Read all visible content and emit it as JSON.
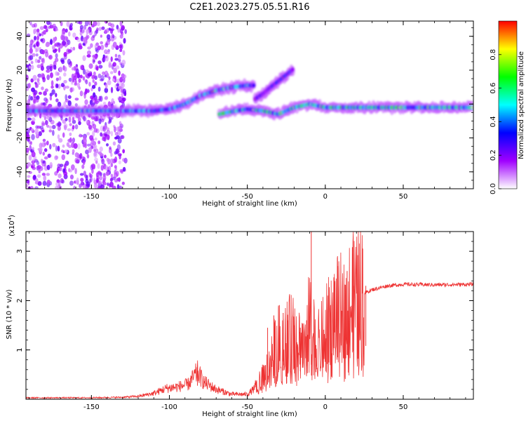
{
  "chart_data": [
    {
      "type": "heatmap",
      "title": "C2E1.2023.275.05.51.R16",
      "xlabel": "Height of straight line (km)",
      "ylabel": "Frequency (Hz)",
      "xlim": [
        -192,
        95
      ],
      "ylim": [
        -50,
        49
      ],
      "xticks": [
        -150,
        -100,
        -50,
        0,
        50
      ],
      "xtick_labels": [
        "-150",
        "-100",
        "-50",
        "0",
        "50"
      ],
      "yticks": [
        -40,
        -20,
        0,
        20,
        40
      ],
      "ytick_labels": [
        "-40",
        "-20",
        "0",
        "20",
        "40"
      ],
      "colorbar": {
        "label": "Normalized spectral amplitude",
        "range": [
          0,
          1
        ],
        "ticks": [
          0,
          0.2,
          0.4,
          0.6,
          0.8
        ],
        "tick_labels": [
          "0.0",
          "0.2",
          "0.4",
          "0.6",
          "0.8"
        ],
        "colors": [
          "#ffffff",
          "#a000ff",
          "#0000ff",
          "#00ffff",
          "#00ff00",
          "#ffff00",
          "#ff0000"
        ]
      },
      "noise_region": {
        "x_range": [
          -192,
          -128
        ],
        "y_range": [
          -50,
          49
        ],
        "amplitude": 0.15
      },
      "bands": [
        {
          "name": "main",
          "points": [
            [
              -192,
              -4
            ],
            [
              -160,
              -4
            ],
            [
              -130,
              -4
            ],
            [
              -110,
              -4
            ],
            [
              -100,
              -3
            ],
            [
              -90,
              0
            ],
            [
              -80,
              5
            ],
            [
              -70,
              8
            ],
            [
              -60,
              10
            ],
            [
              -50,
              11
            ],
            [
              -45,
              11
            ]
          ],
          "amplitude": 0.35
        },
        {
          "name": "upper",
          "points": [
            [
              -45,
              3
            ],
            [
              -40,
              6
            ],
            [
              -35,
              10
            ],
            [
              -28,
              15
            ],
            [
              -20,
              21
            ]
          ],
          "amplitude": 0.25
        },
        {
          "name": "lower",
          "points": [
            [
              -68,
              -6
            ],
            [
              -58,
              -4
            ],
            [
              -50,
              -3
            ],
            [
              -40,
              -4
            ],
            [
              -30,
              -6
            ],
            [
              -20,
              -2
            ],
            [
              -10,
              0
            ],
            [
              0,
              -2
            ],
            [
              10,
              -2
            ],
            [
              50,
              -2
            ],
            [
              95,
              -2
            ]
          ],
          "amplitude": 0.45
        }
      ],
      "grid": false
    },
    {
      "type": "line",
      "xlabel": "Height of straight line (km)",
      "ylabel": "SNR (10 * v/v)",
      "multiplier_label": "(x10",
      "multiplier_exp": "4",
      "multiplier_close": ")",
      "xlim": [
        -192,
        95
      ],
      "ylim": [
        0,
        3.4
      ],
      "xticks": [
        -150,
        -100,
        -50,
        0,
        50
      ],
      "xtick_labels": [
        "-150",
        "-100",
        "-50",
        "0",
        "50"
      ],
      "yticks": [
        1,
        2,
        3
      ],
      "ytick_labels": [
        "1",
        "2",
        "3"
      ],
      "color": "#ee3333",
      "envelope": [
        [
          -192,
          0.03
        ],
        [
          -150,
          0.03
        ],
        [
          -130,
          0.04
        ],
        [
          -120,
          0.06
        ],
        [
          -110,
          0.12
        ],
        [
          -102,
          0.22
        ],
        [
          -95,
          0.25
        ],
        [
          -88,
          0.3
        ],
        [
          -82,
          0.55
        ],
        [
          -78,
          0.35
        ],
        [
          -70,
          0.2
        ],
        [
          -60,
          0.1
        ],
        [
          -50,
          0.1
        ],
        [
          -44,
          0.25
        ],
        [
          -38,
          0.5
        ],
        [
          -34,
          0.9
        ],
        [
          -30,
          1.1
        ],
        [
          -25,
          1.2
        ],
        [
          -20,
          1.25
        ],
        [
          -15,
          1.1
        ],
        [
          -10,
          1.5
        ],
        [
          -5,
          1.0
        ],
        [
          0,
          1.3
        ],
        [
          5,
          1.6
        ],
        [
          8,
          1.7
        ],
        [
          12,
          1.7
        ],
        [
          16,
          1.9
        ],
        [
          20,
          2.0
        ],
        [
          25,
          2.15
        ],
        [
          30,
          2.22
        ],
        [
          40,
          2.3
        ],
        [
          50,
          2.33
        ],
        [
          70,
          2.32
        ],
        [
          95,
          2.33
        ]
      ],
      "spikes": [
        [
          -82,
          0.68
        ],
        [
          -37,
          1.45
        ],
        [
          -33,
          1.7
        ],
        [
          -30,
          1.9
        ],
        [
          -27,
          1.75
        ],
        [
          -24,
          1.6
        ],
        [
          -20,
          1.5
        ],
        [
          -16,
          1.45
        ],
        [
          -12,
          1.6
        ],
        [
          -9,
          3.4
        ],
        [
          -6,
          1.1
        ],
        [
          8,
          2.7
        ],
        [
          14,
          2.6
        ],
        [
          18,
          2.3
        ],
        [
          26,
          2.3
        ]
      ]
    }
  ]
}
